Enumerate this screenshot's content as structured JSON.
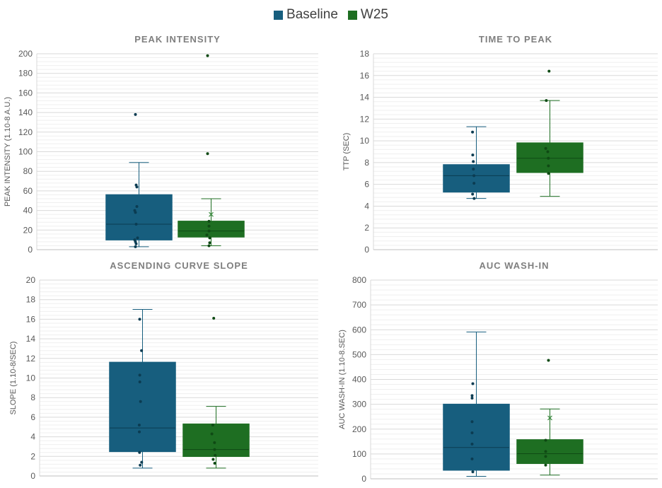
{
  "legend": {
    "items": [
      {
        "label": "Baseline",
        "color": "#175E7E"
      },
      {
        "label": "W25",
        "color": "#1E6E22"
      }
    ]
  },
  "chart_data": [
    {
      "type": "box",
      "title": "PEAK INTENSITY",
      "ylabel": "PEAK INTENSITY (1.10-8 A.U.)",
      "xlabel": "",
      "ylim": [
        0,
        200
      ],
      "ytick_step": 20,
      "yticks": [
        "0",
        "20",
        "40",
        "60",
        "80",
        "100",
        "120",
        "140",
        "160",
        "180",
        "200"
      ],
      "grid": true,
      "series": [
        {
          "name": "Baseline",
          "min": 3,
          "q1": 10,
          "median": 26,
          "q3": 56,
          "max": 89,
          "mean": null,
          "points": [
            3,
            6,
            8,
            10,
            12,
            26,
            38,
            40,
            44,
            64,
            66,
            138
          ]
        },
        {
          "name": "W25",
          "min": 4,
          "q1": 13,
          "median": 19,
          "q3": 29,
          "max": 52,
          "mean": 36,
          "points": [
            4,
            7,
            12,
            15,
            19,
            24,
            29,
            98,
            198
          ]
        }
      ]
    },
    {
      "type": "box",
      "title": "TIME TO PEAK",
      "ylabel": "TTP (SEC)",
      "xlabel": "",
      "ylim": [
        0,
        18
      ],
      "ytick_step": 2,
      "yticks": [
        "0",
        "2",
        "4",
        "6",
        "8",
        "10",
        "12",
        "14",
        "16",
        "18"
      ],
      "grid": true,
      "series": [
        {
          "name": "Baseline",
          "min": 4.7,
          "q1": 5.3,
          "median": 6.8,
          "q3": 7.8,
          "max": 11.3,
          "mean": null,
          "points": [
            4.7,
            5.1,
            6.1,
            6.8,
            7.4,
            8.1,
            8.7,
            10.8
          ]
        },
        {
          "name": "W25",
          "min": 4.9,
          "q1": 7.1,
          "median": 8.4,
          "q3": 9.8,
          "max": 13.7,
          "mean": null,
          "points": [
            7.0,
            7.7,
            8.4,
            9.0,
            9.3,
            13.7,
            16.4
          ]
        }
      ]
    },
    {
      "type": "box",
      "title": "ASCENDING CURVE SLOPE",
      "ylabel": "SLOPE  (1.10-8/SEC)",
      "xlabel": "",
      "ylim": [
        0,
        20
      ],
      "ytick_step": 2,
      "yticks": [
        "0",
        "2",
        "4",
        "6",
        "8",
        "10",
        "12",
        "14",
        "16",
        "18",
        "20"
      ],
      "grid": true,
      "series": [
        {
          "name": "Baseline",
          "min": 0.8,
          "q1": 2.5,
          "median": 4.9,
          "q3": 11.6,
          "max": 17.0,
          "mean": null,
          "points": [
            1.1,
            1.4,
            2.4,
            4.5,
            5.2,
            7.6,
            9.6,
            10.3,
            12.8,
            16.0
          ]
        },
        {
          "name": "W25",
          "min": 0.8,
          "q1": 2.0,
          "median": 2.7,
          "q3": 5.3,
          "max": 7.1,
          "mean": null,
          "points": [
            1.3,
            1.7,
            2.1,
            2.7,
            3.4,
            4.3,
            5.2,
            16.1
          ]
        }
      ]
    },
    {
      "type": "box",
      "title": "AUC WASH-IN",
      "ylabel": "AUC WASH-IN  (1.10-8.SEC)",
      "xlabel": "",
      "ylim": [
        0,
        800
      ],
      "ytick_step": 100,
      "yticks": [
        "0",
        "100",
        "200",
        "300",
        "400",
        "500",
        "600",
        "700",
        "800"
      ],
      "grid": true,
      "series": [
        {
          "name": "Baseline",
          "min": 10,
          "q1": 35,
          "median": 126,
          "q3": 300,
          "max": 591,
          "mean": null,
          "points": [
            28,
            80,
            140,
            185,
            230,
            325,
            335,
            383
          ]
        },
        {
          "name": "W25",
          "min": 15,
          "q1": 62,
          "median": 101,
          "q3": 157,
          "max": 281,
          "mean": 245,
          "points": [
            55,
            90,
            110,
            155,
            477
          ]
        }
      ]
    }
  ]
}
